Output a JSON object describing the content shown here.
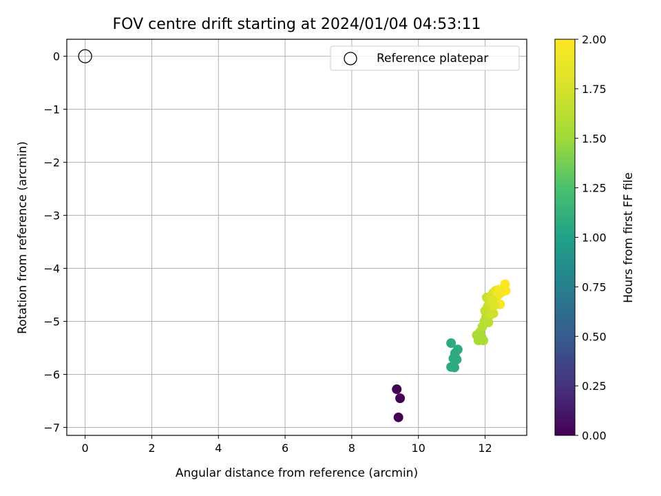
{
  "chart_data": {
    "type": "scatter",
    "title": "FOV centre drift starting at 2024/01/04 04:53:11",
    "xlabel": "Angular distance from reference (arcmin)",
    "ylabel": "Rotation from reference (arcmin)",
    "xlim": [
      -0.55,
      13.25
    ],
    "ylim": [
      -7.15,
      0.32
    ],
    "xticks": [
      0,
      2,
      4,
      6,
      8,
      10,
      12
    ],
    "yticks": [
      0,
      -1,
      -2,
      -3,
      -4,
      -5,
      -6,
      -7
    ],
    "ytick_labels": [
      "0",
      "−1",
      "−2",
      "−3",
      "−4",
      "−5",
      "−6",
      "−7"
    ],
    "grid": true,
    "legend": {
      "position": "top-right",
      "entries": [
        "Reference platepar"
      ]
    },
    "reference": {
      "x": 0,
      "y": 0,
      "label": "Reference platepar"
    },
    "colorbar": {
      "label": "Hours from first FF file",
      "colormap": "viridis",
      "range": [
        0,
        2
      ],
      "ticks": [
        "0.00",
        "0.25",
        "0.50",
        "0.75",
        "1.00",
        "1.25",
        "1.50",
        "1.75",
        "2.00"
      ]
    },
    "points": [
      {
        "x": 9.35,
        "y": -6.28,
        "c": 0.0
      },
      {
        "x": 9.45,
        "y": -6.45,
        "c": 0.0
      },
      {
        "x": 9.4,
        "y": -6.81,
        "c": 0.0
      },
      {
        "x": 10.98,
        "y": -5.41,
        "c": 1.08
      },
      {
        "x": 11.18,
        "y": -5.53,
        "c": 1.08
      },
      {
        "x": 11.1,
        "y": -5.6,
        "c": 1.08
      },
      {
        "x": 11.05,
        "y": -5.7,
        "c": 1.08
      },
      {
        "x": 11.15,
        "y": -5.72,
        "c": 1.08
      },
      {
        "x": 10.98,
        "y": -5.86,
        "c": 1.08
      },
      {
        "x": 11.08,
        "y": -5.87,
        "c": 1.08
      },
      {
        "x": 11.75,
        "y": -5.26,
        "c": 1.55
      },
      {
        "x": 11.9,
        "y": -5.3,
        "c": 1.55
      },
      {
        "x": 11.8,
        "y": -5.36,
        "c": 1.55
      },
      {
        "x": 11.95,
        "y": -5.36,
        "c": 1.55
      },
      {
        "x": 11.85,
        "y": -5.2,
        "c": 1.55
      },
      {
        "x": 11.92,
        "y": -5.1,
        "c": 1.6
      },
      {
        "x": 11.98,
        "y": -5.0,
        "c": 1.6
      },
      {
        "x": 12.03,
        "y": -4.92,
        "c": 1.62
      },
      {
        "x": 12.1,
        "y": -5.02,
        "c": 1.62
      },
      {
        "x": 12.0,
        "y": -4.8,
        "c": 1.65
      },
      {
        "x": 12.08,
        "y": -4.72,
        "c": 1.68
      },
      {
        "x": 12.15,
        "y": -4.88,
        "c": 1.7
      },
      {
        "x": 12.2,
        "y": -4.78,
        "c": 1.7
      },
      {
        "x": 12.25,
        "y": -4.85,
        "c": 1.72
      },
      {
        "x": 12.12,
        "y": -4.62,
        "c": 1.72
      },
      {
        "x": 12.05,
        "y": -4.55,
        "c": 1.68
      },
      {
        "x": 12.18,
        "y": -4.52,
        "c": 1.75
      },
      {
        "x": 12.25,
        "y": -4.46,
        "c": 1.74
      },
      {
        "x": 12.3,
        "y": -4.6,
        "c": 1.8
      },
      {
        "x": 12.35,
        "y": -4.52,
        "c": 1.85
      },
      {
        "x": 12.32,
        "y": -4.42,
        "c": 1.86
      },
      {
        "x": 12.45,
        "y": -4.68,
        "c": 1.95
      },
      {
        "x": 12.4,
        "y": -4.5,
        "c": 1.92
      },
      {
        "x": 12.5,
        "y": -4.45,
        "c": 1.97
      },
      {
        "x": 12.55,
        "y": -4.38,
        "c": 1.98
      },
      {
        "x": 12.6,
        "y": -4.3,
        "c": 2.0
      },
      {
        "x": 12.62,
        "y": -4.42,
        "c": 2.0
      },
      {
        "x": 12.42,
        "y": -4.4,
        "c": 1.94
      },
      {
        "x": 12.28,
        "y": -4.7,
        "c": 1.82
      },
      {
        "x": 12.22,
        "y": -4.6,
        "c": 1.78
      }
    ]
  }
}
